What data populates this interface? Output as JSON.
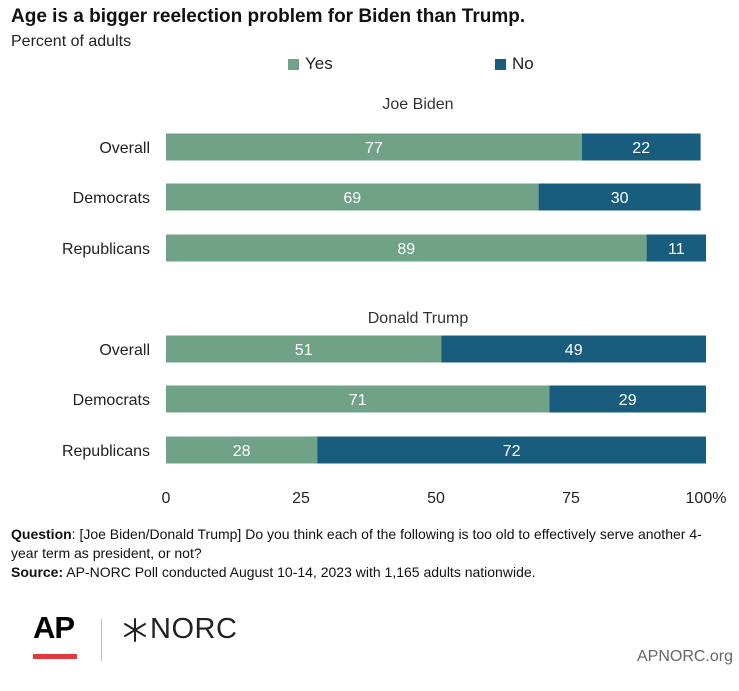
{
  "header": {
    "title": "Age is a bigger reelection problem for Biden than Trump.",
    "subtitle": "Percent of adults"
  },
  "legend": [
    {
      "label": "Yes",
      "color": "#6fa287"
    },
    {
      "label": "No",
      "color": "#195d7e"
    }
  ],
  "chart_data": {
    "type": "bar",
    "orientation": "horizontal",
    "stacked": true,
    "groups": [
      {
        "title": "Joe Biden",
        "categories": [
          "Overall",
          "Democrats",
          "Republicans"
        ],
        "series": [
          {
            "name": "Yes",
            "values": [
              77,
              69,
              89
            ]
          },
          {
            "name": "No",
            "values": [
              22,
              30,
              11
            ]
          }
        ]
      },
      {
        "title": "Donald Trump",
        "categories": [
          "Overall",
          "Democrats",
          "Republicans"
        ],
        "series": [
          {
            "name": "Yes",
            "values": [
              51,
              71,
              28
            ]
          },
          {
            "name": "No",
            "values": [
              49,
              29,
              72
            ]
          }
        ]
      }
    ],
    "xlim": [
      0,
      100
    ],
    "xticks": [
      "0",
      "25",
      "50",
      "75",
      "100"
    ],
    "xunit": "%",
    "colors": {
      "Yes": "#6fa287",
      "No": "#195d7e"
    }
  },
  "notes": {
    "question_label": "Question",
    "question_text": ": [Joe Biden/Donald Trump] Do you think each of the following is too old to effectively serve another 4-year term as president, or not?",
    "source_label": "Source:",
    "source_text": " AP-NORC Poll conducted August 10-14, 2023 with 1,165 adults nationwide."
  },
  "footer": {
    "ap_logo": "AP",
    "norc_logo": "NORC",
    "norc_icon": "star-cross-icon",
    "website": "APNORC.org"
  }
}
